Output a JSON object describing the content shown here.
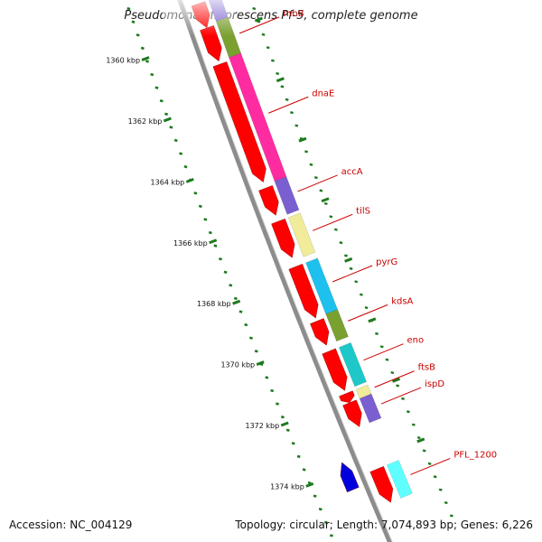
{
  "title": "Pseudomonas fluorescens Pf-5, complete genome",
  "footer": {
    "accession": "Accession: NC_004129",
    "stats": "Topology: circular; Length: 7,074,893 bp; Genes: 6,226"
  },
  "colors": {
    "backbone": "#8c8c8c",
    "ticks": "#1e7a1e",
    "cds": "#ff0000",
    "label": "#cc0000"
  },
  "ticks": [
    {
      "label": "1360 kbp",
      "kbp": 1360
    },
    {
      "label": "1362 kbp",
      "kbp": 1362
    },
    {
      "label": "1364 kbp",
      "kbp": 1364
    },
    {
      "label": "1366 kbp",
      "kbp": 1366
    },
    {
      "label": "1368 kbp",
      "kbp": 1368
    },
    {
      "label": "1370 kbp",
      "kbp": 1370
    },
    {
      "label": "1372 kbp",
      "kbp": 1372
    },
    {
      "label": "1374 kbp",
      "kbp": 1374
    }
  ],
  "genes": [
    {
      "name": "rnhB",
      "start": 1359.6,
      "end": 1360.8,
      "cog_color": "#7aa030"
    },
    {
      "name": "",
      "start": 1358.9,
      "end": 1359.6,
      "cog_color": "#7a5fd0"
    },
    {
      "name": "dnaE",
      "start": 1360.8,
      "end": 1364.9,
      "cog_color": "#ff2ba0"
    },
    {
      "name": "accA",
      "start": 1364.9,
      "end": 1366.0,
      "cog_color": "#7a5fd0"
    },
    {
      "name": "tilS",
      "start": 1366.1,
      "end": 1367.4,
      "cog_color": "#f0ec9a"
    },
    {
      "name": "pyrG",
      "start": 1367.6,
      "end": 1369.3,
      "cog_color": "#1ec0ee"
    },
    {
      "name": "kdsA",
      "start": 1369.3,
      "end": 1370.2,
      "cog_color": "#7aa030"
    },
    {
      "name": "eno",
      "start": 1370.4,
      "end": 1371.7,
      "cog_color": "#1ec8c8"
    },
    {
      "name": "ftsB",
      "start": 1371.8,
      "end": 1372.1,
      "cog_color": "#f0ec9a"
    },
    {
      "name": "ispD",
      "start": 1372.1,
      "end": 1372.9,
      "cog_color": "#7a5fd0"
    },
    {
      "name": "PFL_1200",
      "start": 1374.3,
      "end": 1375.4,
      "cog_color": "#60ffff"
    }
  ],
  "cds_forward": [
    {
      "start": 1358.9,
      "end": 1359.7
    },
    {
      "start": 1359.7,
      "end": 1360.8
    },
    {
      "start": 1360.9,
      "end": 1364.8
    },
    {
      "start": 1365.0,
      "end": 1365.9
    },
    {
      "start": 1366.1,
      "end": 1367.3
    },
    {
      "start": 1367.6,
      "end": 1369.3
    },
    {
      "start": 1369.4,
      "end": 1370.2
    },
    {
      "start": 1370.4,
      "end": 1371.7
    },
    {
      "start": 1371.8,
      "end": 1372.1
    },
    {
      "start": 1372.1,
      "end": 1372.9
    },
    {
      "start": 1374.3,
      "end": 1375.4
    }
  ],
  "cds_reverse": [
    {
      "start": 1373.7,
      "end": 1374.6,
      "color": "#0000dd"
    }
  ]
}
